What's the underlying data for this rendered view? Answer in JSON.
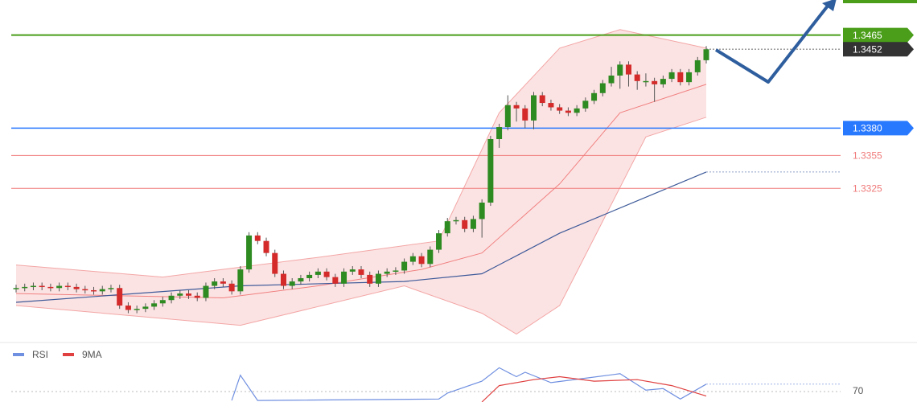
{
  "chart_data": {
    "type": "candlestick",
    "up_color": "#2e8b22",
    "down_color": "#d42a2a",
    "ylim": [
      1.3185,
      1.3497
    ],
    "open": [
      1.3233,
      1.3234,
      1.3235,
      1.3236,
      1.3235,
      1.3234,
      1.3236,
      1.3235,
      1.3233,
      1.3232,
      1.3231,
      1.3233,
      1.3234,
      1.3218,
      1.3214,
      1.3215,
      1.3217,
      1.322,
      1.3223,
      1.3227,
      1.3229,
      1.3227,
      1.3225,
      1.3236,
      1.324,
      1.3238,
      1.3231,
      1.3251,
      1.3282,
      1.3277,
      1.3266,
      1.3247,
      1.3236,
      1.324,
      1.3243,
      1.3246,
      1.3249,
      1.3244,
      1.3238,
      1.3249,
      1.3251,
      1.3246,
      1.3238,
      1.3247,
      1.3249,
      1.325,
      1.3258,
      1.3263,
      1.3256,
      1.3269,
      1.3284,
      1.3295,
      1.3296,
      1.3288,
      1.3297,
      1.3312,
      1.337,
      1.3381,
      1.3401,
      1.3398,
      1.3387,
      1.341,
      1.3403,
      1.3399,
      1.3396,
      1.3394,
      1.3398,
      1.3405,
      1.3412,
      1.3421,
      1.3428,
      1.3438,
      1.3429,
      1.3423,
      1.3423,
      1.342,
      1.3425,
      1.3431,
      1.3422,
      1.3431,
      1.3442
    ],
    "high": [
      1.3237,
      1.3238,
      1.3239,
      1.3239,
      1.3238,
      1.3239,
      1.3239,
      1.3238,
      1.3236,
      1.3235,
      1.3236,
      1.3237,
      1.3237,
      1.3221,
      1.3218,
      1.322,
      1.3223,
      1.3226,
      1.323,
      1.3232,
      1.3232,
      1.323,
      1.3239,
      1.3243,
      1.3243,
      1.3241,
      1.3254,
      1.3285,
      1.3285,
      1.328,
      1.3269,
      1.325,
      1.3243,
      1.3246,
      1.3249,
      1.3252,
      1.3252,
      1.3247,
      1.3252,
      1.3254,
      1.3254,
      1.3249,
      1.325,
      1.3252,
      1.3253,
      1.3261,
      1.3266,
      1.3266,
      1.3272,
      1.3287,
      1.3298,
      1.3299,
      1.3299,
      1.33,
      1.3315,
      1.3373,
      1.3384,
      1.341,
      1.3404,
      1.3401,
      1.3413,
      1.3413,
      1.3406,
      1.3402,
      1.3399,
      1.3401,
      1.3408,
      1.3415,
      1.3424,
      1.3436,
      1.3441,
      1.3441,
      1.3432,
      1.343,
      1.3426,
      1.3428,
      1.3434,
      1.3434,
      1.3434,
      1.3445,
      1.3455
    ],
    "low": [
      1.323,
      1.3231,
      1.3232,
      1.3232,
      1.3231,
      1.3231,
      1.3232,
      1.323,
      1.3229,
      1.3228,
      1.3228,
      1.323,
      1.3215,
      1.3211,
      1.3211,
      1.3212,
      1.3214,
      1.3217,
      1.322,
      1.3224,
      1.3224,
      1.3222,
      1.3222,
      1.3233,
      1.3235,
      1.3228,
      1.3228,
      1.3248,
      1.3274,
      1.3263,
      1.3244,
      1.3233,
      1.3233,
      1.3237,
      1.324,
      1.3243,
      1.3241,
      1.3235,
      1.3235,
      1.3246,
      1.3243,
      1.3235,
      1.3235,
      1.3244,
      1.3246,
      1.3247,
      1.3255,
      1.3253,
      1.3253,
      1.3266,
      1.3281,
      1.3292,
      1.3285,
      1.3285,
      1.328,
      1.3309,
      1.3362,
      1.3378,
      1.3386,
      1.338,
      1.3379,
      1.34,
      1.3396,
      1.3393,
      1.3391,
      1.3391,
      1.3395,
      1.3402,
      1.3409,
      1.3418,
      1.3416,
      1.3418,
      1.3415,
      1.3418,
      1.3404,
      1.3417,
      1.3422,
      1.3419,
      1.3419,
      1.3428,
      1.3439
    ],
    "close": [
      1.3234,
      1.3235,
      1.3236,
      1.3235,
      1.3234,
      1.3236,
      1.3235,
      1.3233,
      1.3232,
      1.3231,
      1.3233,
      1.3234,
      1.3218,
      1.3214,
      1.3215,
      1.3217,
      1.322,
      1.3223,
      1.3227,
      1.3229,
      1.3227,
      1.3225,
      1.3236,
      1.324,
      1.3238,
      1.3231,
      1.3251,
      1.3282,
      1.3277,
      1.3266,
      1.3247,
      1.3236,
      1.324,
      1.3243,
      1.3246,
      1.3249,
      1.3244,
      1.3238,
      1.3249,
      1.3251,
      1.3246,
      1.3238,
      1.3247,
      1.3249,
      1.325,
      1.3258,
      1.3263,
      1.3256,
      1.3269,
      1.3284,
      1.3295,
      1.3296,
      1.3288,
      1.3297,
      1.3312,
      1.337,
      1.3381,
      1.3401,
      1.3398,
      1.3387,
      1.341,
      1.3403,
      1.3399,
      1.3396,
      1.3394,
      1.3398,
      1.3405,
      1.3412,
      1.3421,
      1.3428,
      1.3438,
      1.3429,
      1.3423,
      1.3423,
      1.342,
      1.3425,
      1.3431,
      1.3422,
      1.3431,
      1.3442,
      1.3452
    ],
    "overlays": [
      {
        "color": "#f3a6a6",
        "x": [
          0,
          17,
          35,
          49,
          56,
          63,
          70,
          80
        ],
        "values": [
          1.3255,
          1.3244,
          1.3262,
          1.3277,
          1.3394,
          1.3453,
          1.347,
          1.3453
        ]
      },
      {
        "color": "#f3a6a6",
        "x": [
          0,
          26,
          45,
          54,
          58,
          63,
          73,
          80
        ],
        "values": [
          1.3218,
          1.32,
          1.3236,
          1.3211,
          1.3192,
          1.3218,
          1.3372,
          1.339
        ]
      },
      {
        "color": "#f08080",
        "x": [
          0,
          24,
          35,
          47,
          54,
          63,
          70,
          80
        ],
        "values": [
          1.3229,
          1.3225,
          1.3236,
          1.3251,
          1.3266,
          1.3329,
          1.3394,
          1.342
        ]
      },
      {
        "color": "#3d5a99",
        "x": [
          0,
          26,
          45,
          54,
          63,
          80
        ],
        "values": [
          1.3221,
          1.3236,
          1.324,
          1.3247,
          1.3284,
          1.334
        ]
      }
    ],
    "levels": [
      {
        "value": 1.3465,
        "label": "1.3465",
        "color": "#4a9e1a",
        "style": "solid",
        "badge": true
      },
      {
        "value": 1.3452,
        "label": "1.3452",
        "color": "#333333",
        "style": "dotted",
        "badge": true
      },
      {
        "value": 1.338,
        "label": "1.3380",
        "color": "#2979ff",
        "style": "solid",
        "badge": true
      },
      {
        "value": 1.3355,
        "label": "1.3355",
        "color": "#f07a7a",
        "style": "solid",
        "badge": false
      },
      {
        "value": 1.3325,
        "label": "1.3325",
        "color": "#f07a7a",
        "style": "solid",
        "badge": false
      }
    ],
    "rsi": {
      "ylim": [
        66.5,
        80
      ],
      "yticks": [
        70
      ],
      "series": [
        {
          "name": "RSI",
          "color": "#6f8fe0",
          "x": [
            25,
            26,
            28,
            49,
            50,
            54,
            56,
            58,
            59,
            62,
            66,
            70,
            73,
            75,
            77,
            80
          ],
          "values": [
            67,
            75.5,
            67,
            67.5,
            69.5,
            73.5,
            78,
            75,
            76.5,
            73,
            74.5,
            76,
            70.5,
            71,
            67.5,
            72.5
          ]
        },
        {
          "name": "9MA",
          "color": "#e04040",
          "x": [
            54,
            56,
            60,
            63,
            67,
            72,
            76,
            80
          ],
          "values": [
            66.5,
            72,
            74,
            75,
            73.5,
            74,
            72,
            68.5
          ]
        }
      ]
    }
  }
}
